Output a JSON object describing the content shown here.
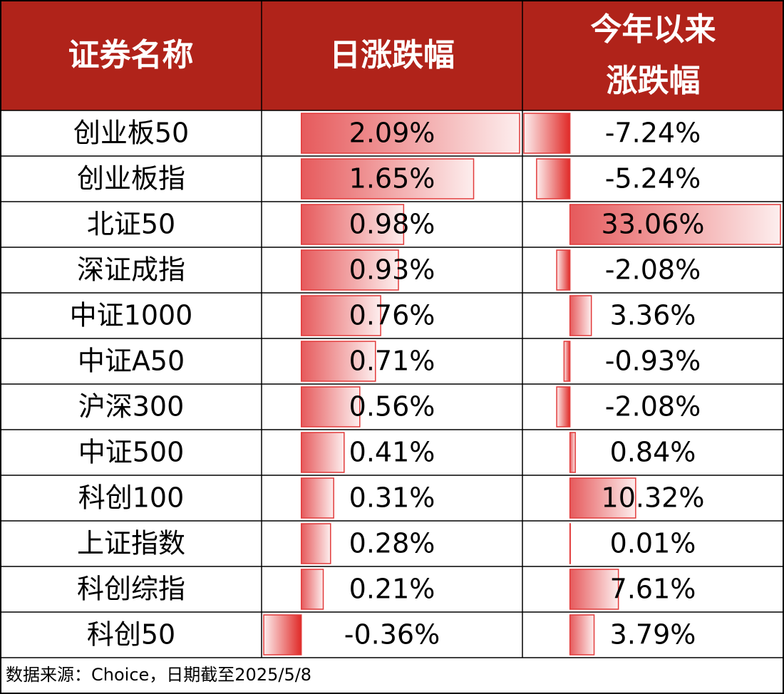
{
  "table": {
    "headers": [
      "证券名称",
      "日涨跌幅",
      "今年以来涨跌幅"
    ],
    "names": [
      "创业板50",
      "创业板指",
      "北证50",
      "深证成指",
      "中证1000",
      "中证A50",
      "沪深300",
      "中证500",
      "科创100",
      "上证指数",
      "科创综指",
      "科创50"
    ],
    "daily": {
      "values": [
        2.09,
        1.65,
        0.98,
        0.93,
        0.76,
        0.71,
        0.56,
        0.41,
        0.31,
        0.28,
        0.21,
        -0.36
      ],
      "value_labels": [
        "2.09%",
        "1.65%",
        "0.98%",
        "0.93%",
        "0.76%",
        "0.71%",
        "0.56%",
        "0.41%",
        "0.31%",
        "0.28%",
        "0.21%",
        "-0.36%"
      ]
    },
    "ytd": {
      "values": [
        -7.24,
        -5.24,
        33.06,
        -2.08,
        3.36,
        -0.93,
        -2.08,
        0.84,
        10.32,
        0.01,
        7.61,
        3.79
      ],
      "value_labels": [
        "-7.24%",
        "-5.24%",
        "33.06%",
        "-2.08%",
        "3.36%",
        "-0.93%",
        "-2.08%",
        "0.84%",
        "10.32%",
        "0.01%",
        "7.61%",
        "3.79%"
      ]
    }
  },
  "source": "数据来源：Choice，日期截至2025/5/8"
}
